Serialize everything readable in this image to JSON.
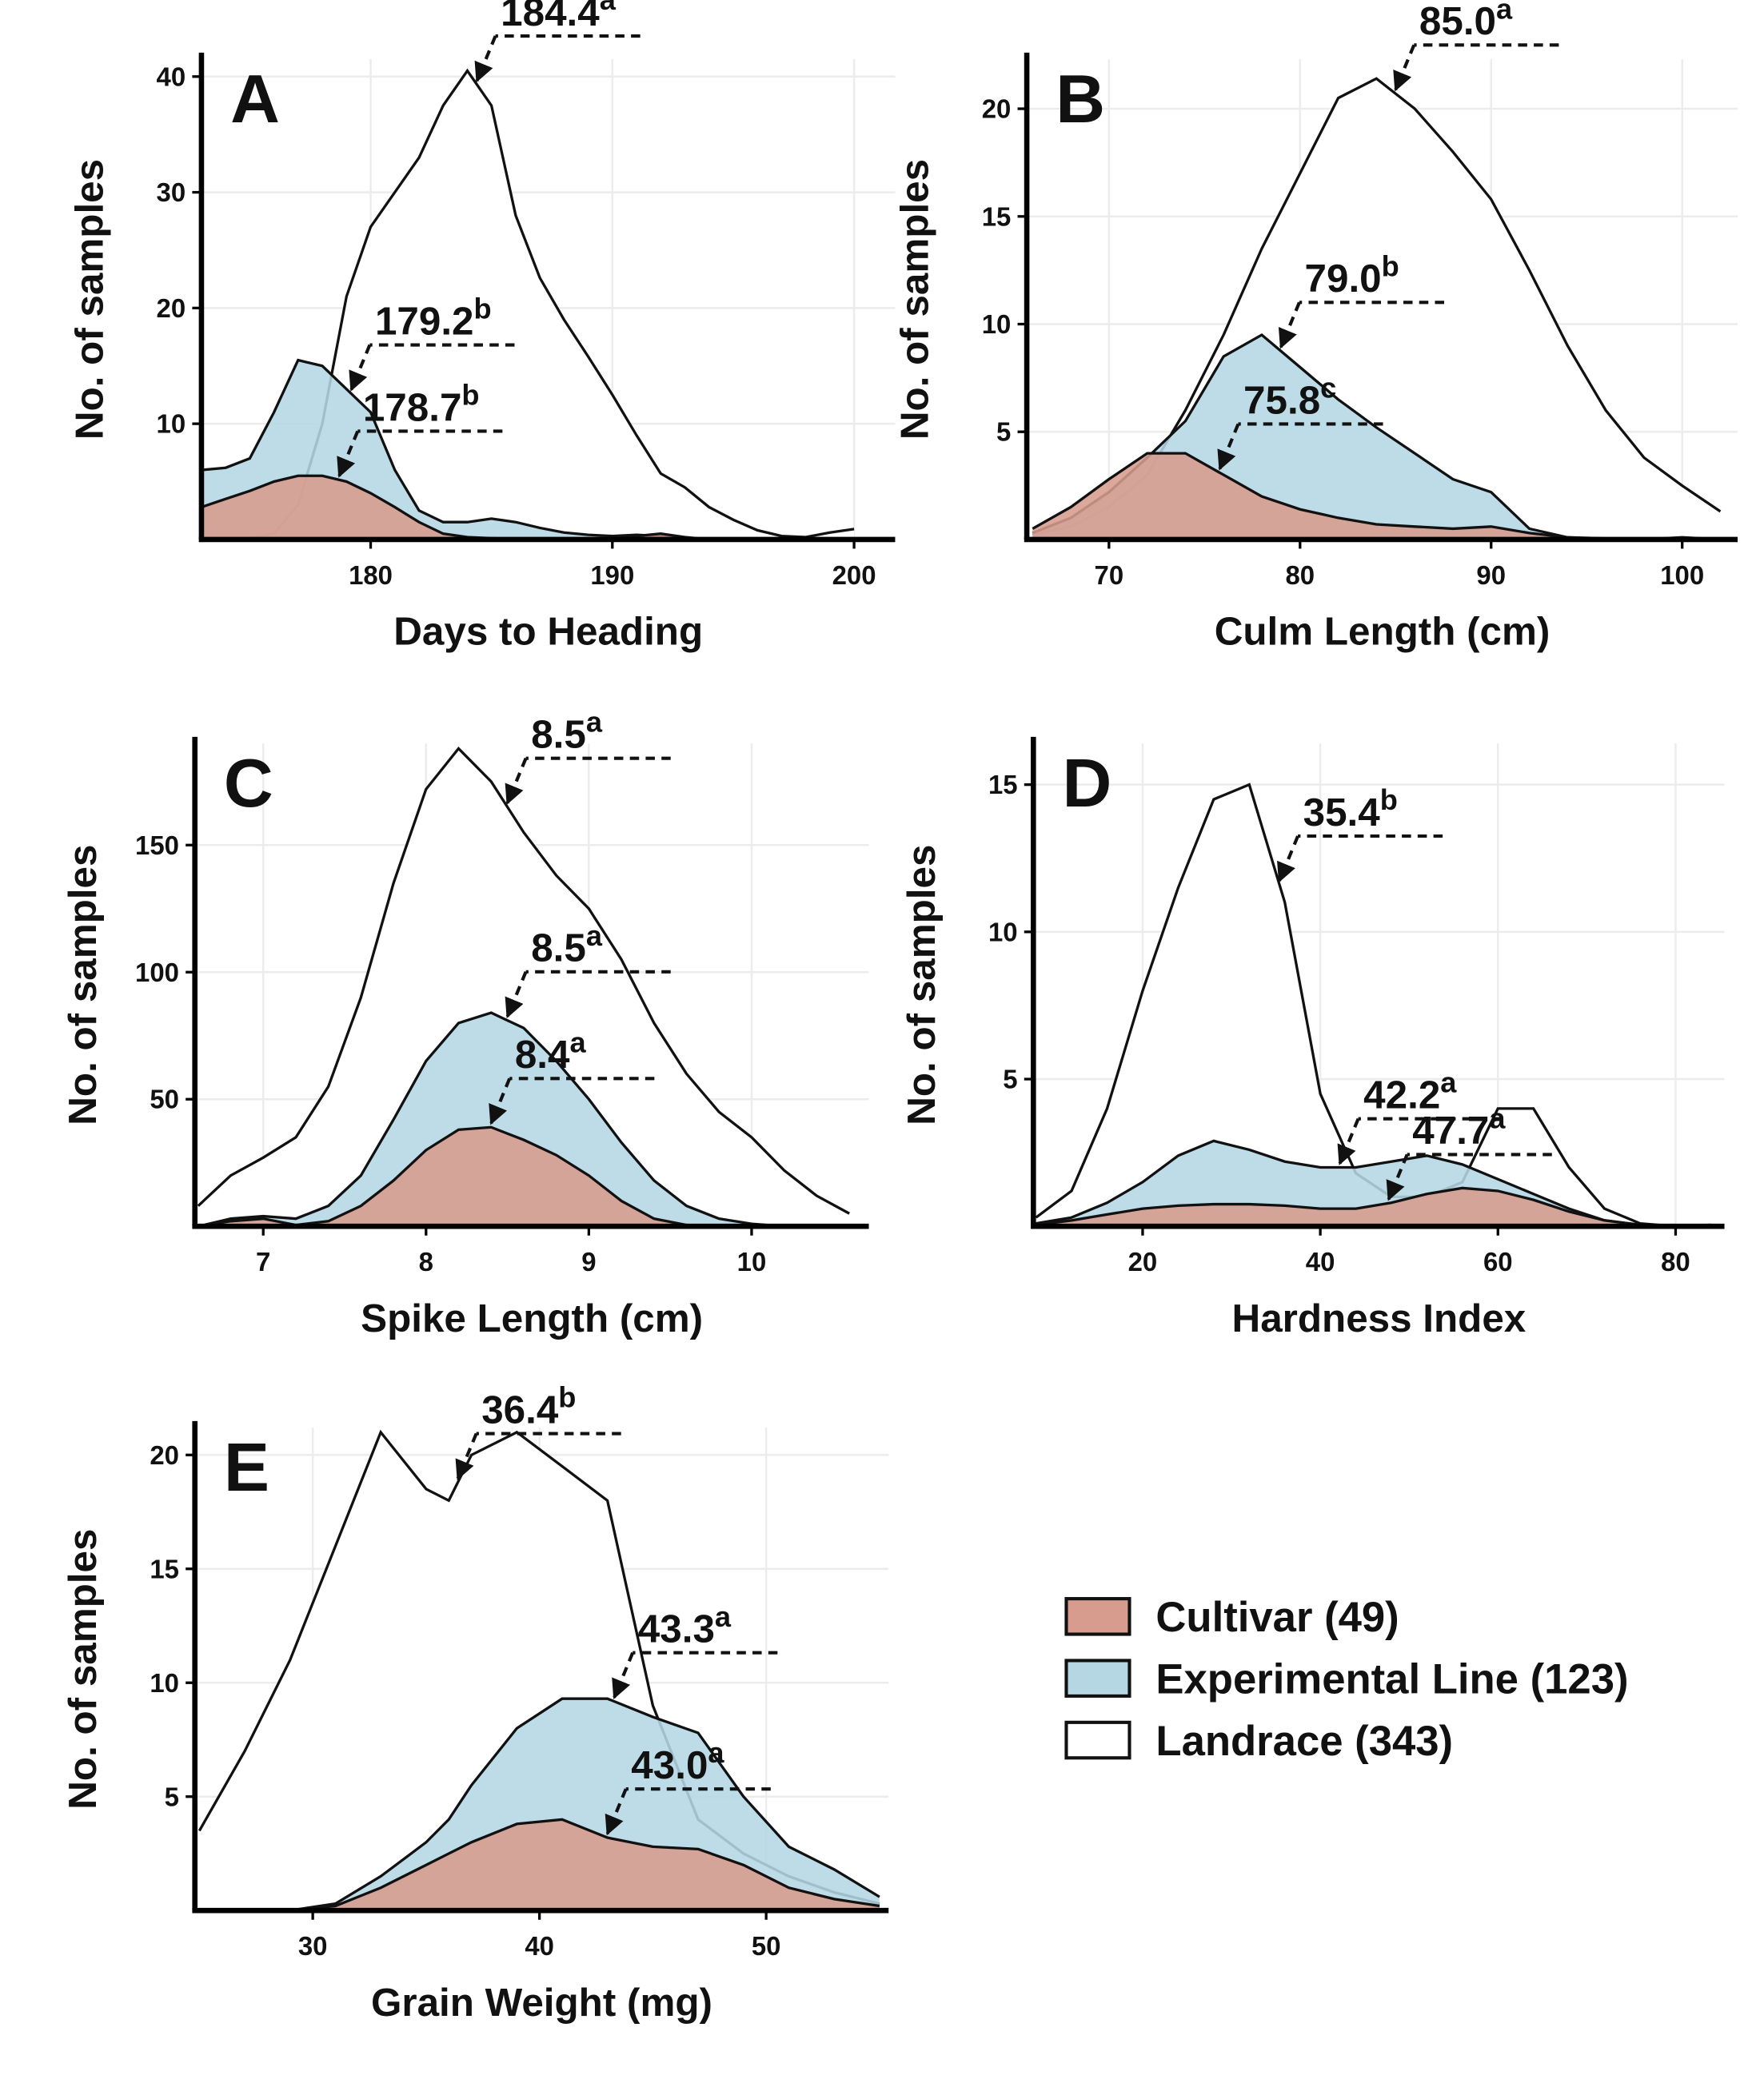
{
  "legend": {
    "entries": [
      {
        "name": "Cultivar (49)",
        "color": "#d89c8e"
      },
      {
        "name": "Experimental Line (123)",
        "color": "#b5d7e4"
      },
      {
        "name": "Landrace (343)",
        "color": "#ffffff"
      }
    ]
  },
  "chart_data": [
    {
      "type": "area",
      "title": "A",
      "xlabel": "Days to Heading",
      "ylabel": "No. of samples",
      "xlim": [
        173,
        201.7
      ],
      "ylim": [
        0,
        41.5
      ],
      "xticks": [
        180,
        190,
        200
      ],
      "yticks": [
        10,
        20,
        30,
        40
      ],
      "grid": true,
      "x": [
        173,
        174,
        175,
        176,
        177,
        178,
        179,
        180,
        181,
        182,
        183,
        184,
        185,
        186,
        187,
        188,
        189,
        190,
        191,
        192,
        193,
        194,
        195,
        196,
        197,
        198,
        199,
        200
      ],
      "series": [
        {
          "values": [
            2.8,
            3.5,
            4.2,
            5,
            5.5,
            5.5,
            5,
            4,
            2.8,
            1.5,
            0.5,
            0.2,
            0.1,
            0,
            0,
            0,
            0,
            0,
            0.3,
            0.5,
            0.2,
            0,
            0,
            0,
            0,
            0,
            0,
            0
          ],
          "annotation": {
            "value": 178.7,
            "label": "178.7",
            "letter": "b"
          }
        },
        {
          "values": [
            6,
            6.2,
            7,
            11,
            15.5,
            15,
            13,
            11,
            6,
            2.5,
            1.5,
            1.5,
            1.8,
            1.5,
            1,
            0.6,
            0.4,
            0.3,
            0.4,
            0.3,
            0.1,
            0,
            0,
            0,
            0,
            0,
            0,
            0
          ],
          "annotation": {
            "value": 179.2,
            "label": "179.2",
            "letter": "b"
          }
        },
        {
          "values": [
            0,
            0,
            0.1,
            0.5,
            3,
            10,
            21,
            27,
            30,
            33,
            37.5,
            40.5,
            37.5,
            28,
            22.6,
            19,
            15.8,
            12.5,
            9,
            5.7,
            4.5,
            2.8,
            1.7,
            0.8,
            0.3,
            0.2,
            0.6,
            0.9
          ],
          "annotation": {
            "value": 184.4,
            "label": "184.4",
            "letter": "a"
          }
        }
      ]
    },
    {
      "type": "area",
      "title": "B",
      "xlabel": "Culm Length (cm)",
      "ylabel": "No. of samples",
      "xlim": [
        65.7,
        102.9
      ],
      "ylim": [
        0,
        22.3
      ],
      "xticks": [
        70,
        80,
        90,
        100
      ],
      "yticks": [
        5,
        10,
        15,
        20
      ],
      "grid": true,
      "x": [
        66,
        68,
        70,
        72,
        74,
        76,
        78,
        80,
        82,
        84,
        86,
        88,
        90,
        92,
        94,
        96,
        98,
        100,
        102
      ],
      "series": [
        {
          "values": [
            0.5,
            1.5,
            2.8,
            4,
            4,
            3,
            2,
            1.4,
            1,
            0.7,
            0.6,
            0.5,
            0.6,
            0.3,
            0.1,
            0,
            0,
            0,
            0
          ],
          "annotation": {
            "value": 75.8,
            "label": "75.8",
            "letter": "c"
          }
        },
        {
          "values": [
            0.3,
            1,
            2.2,
            3.8,
            5.5,
            8.5,
            9.5,
            8,
            6.5,
            5.2,
            4,
            2.8,
            2.2,
            0.5,
            0.1,
            0.05,
            0,
            0.1,
            0
          ],
          "annotation": {
            "value": 79.0,
            "label": "79.0",
            "letter": "b"
          }
        },
        {
          "values": [
            0.2,
            0.6,
            1.5,
            3,
            6,
            9.5,
            13.5,
            17,
            20.5,
            21.4,
            20,
            18,
            15.8,
            12.5,
            9,
            6,
            3.8,
            2.5,
            1.3
          ],
          "annotation": {
            "value": 85.0,
            "label": "85.0",
            "letter": "a"
          }
        }
      ]
    },
    {
      "type": "area",
      "title": "C",
      "xlabel": "Spike Length (cm)",
      "ylabel": "No. of samples",
      "xlim": [
        6.58,
        10.72
      ],
      "ylim": [
        0,
        190
      ],
      "xticks": [
        7,
        8,
        9,
        10
      ],
      "yticks": [
        50,
        100,
        150
      ],
      "grid": true,
      "x": [
        6.6,
        6.8,
        7.0,
        7.2,
        7.4,
        7.6,
        7.8,
        8.0,
        8.2,
        8.4,
        8.6,
        8.8,
        9.0,
        9.2,
        9.4,
        9.6,
        9.8,
        10.0,
        10.2,
        10.4,
        10.6
      ],
      "series": [
        {
          "values": [
            0,
            2,
            3,
            0.5,
            2,
            8,
            18,
            30,
            38,
            39,
            34,
            28,
            20,
            10,
            3,
            0.5,
            0,
            0,
            0,
            0,
            0
          ],
          "annotation": {
            "value": 8.4,
            "label": "8.4",
            "letter": "a"
          }
        },
        {
          "values": [
            0,
            3,
            4,
            3,
            8,
            20,
            42,
            65,
            80,
            84,
            78,
            65,
            50,
            33,
            18,
            8,
            3,
            1,
            0,
            0,
            0
          ],
          "annotation": {
            "value": 8.5,
            "label": "8.5",
            "letter": "a"
          }
        },
        {
          "values": [
            8,
            20,
            27,
            35,
            55,
            90,
            135,
            172,
            188,
            175,
            155,
            138,
            125,
            105,
            80,
            60,
            45,
            35,
            22,
            12,
            5
          ],
          "annotation": {
            "value": 8.5,
            "label": "8.5",
            "letter": "a"
          }
        }
      ]
    },
    {
      "type": "area",
      "title": "D",
      "xlabel": "Hardness Index",
      "ylabel": "No. of samples",
      "xlim": [
        7.7,
        85.5
      ],
      "ylim": [
        0,
        16.4
      ],
      "xticks": [
        20,
        40,
        60,
        80
      ],
      "yticks": [
        5,
        10,
        15
      ],
      "grid": true,
      "x": [
        8,
        12,
        16,
        20,
        24,
        28,
        32,
        36,
        40,
        44,
        48,
        52,
        56,
        60,
        64,
        68,
        72,
        76,
        80,
        84
      ],
      "series": [
        {
          "values": [
            0.05,
            0.2,
            0.4,
            0.6,
            0.7,
            0.75,
            0.75,
            0.7,
            0.6,
            0.6,
            0.8,
            1.1,
            1.3,
            1.2,
            0.9,
            0.5,
            0.2,
            0.05,
            0,
            0
          ],
          "annotation": {
            "value": 47.7,
            "label": "47.7",
            "letter": "a"
          }
        },
        {
          "values": [
            0.1,
            0.3,
            0.8,
            1.5,
            2.4,
            2.9,
            2.6,
            2.2,
            2.0,
            2.0,
            2.2,
            2.4,
            2.1,
            1.6,
            1.1,
            0.6,
            0.2,
            0.05,
            0,
            0.05
          ],
          "annotation": {
            "value": 42.2,
            "label": "42.2",
            "letter": "a"
          }
        },
        {
          "values": [
            0.3,
            1.2,
            4,
            8,
            11.5,
            14.5,
            15,
            11,
            4.5,
            1.8,
            1,
            1,
            1.5,
            4,
            4,
            2,
            0.6,
            0.1,
            0,
            0
          ],
          "annotation": {
            "value": 35.4,
            "label": "35.4",
            "letter": "b"
          }
        }
      ]
    },
    {
      "type": "area",
      "title": "E",
      "xlabel": "Grain Weight (mg)",
      "ylabel": "No. of samples",
      "xlim": [
        24.8,
        55.4
      ],
      "ylim": [
        0,
        21.2
      ],
      "xticks": [
        30,
        40,
        50
      ],
      "yticks": [
        5,
        10,
        15,
        20
      ],
      "grid": true,
      "x": [
        25,
        27,
        29,
        31,
        33,
        35,
        36,
        37,
        39,
        41,
        43,
        45,
        47,
        49,
        51,
        53,
        55
      ],
      "series": [
        {
          "values": [
            0,
            0,
            0,
            0.2,
            1,
            2,
            2.5,
            3,
            3.8,
            4,
            3.2,
            2.8,
            2.7,
            2,
            1,
            0.5,
            0.2
          ],
          "annotation": {
            "value": 43.0,
            "label": "43.0",
            "letter": "a"
          }
        },
        {
          "values": [
            0,
            0,
            0,
            0.3,
            1.5,
            3,
            4,
            5.5,
            8,
            9.3,
            9.3,
            8.5,
            7.8,
            5,
            2.8,
            1.8,
            0.6
          ],
          "annotation": {
            "value": 43.3,
            "label": "43.3",
            "letter": "a"
          }
        },
        {
          "values": [
            3.5,
            7,
            11,
            16,
            21,
            18.5,
            18,
            20,
            21,
            19.5,
            18,
            9,
            4,
            2.5,
            1.5,
            0.8,
            0.3
          ],
          "annotation": {
            "value": 36.4,
            "label": "36.4",
            "letter": "b"
          }
        }
      ]
    }
  ]
}
